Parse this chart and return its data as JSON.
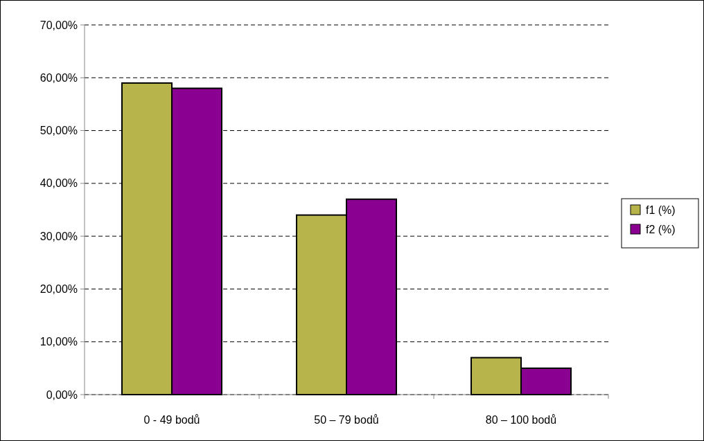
{
  "chart_data": {
    "type": "bar",
    "categories": [
      "0 - 49 bodů",
      "50 – 79 bodů",
      "80 – 100 bodů"
    ],
    "series": [
      {
        "name": "f1 (%)",
        "color": "#b8b44c",
        "values": [
          59,
          34,
          7
        ]
      },
      {
        "name": "f2 (%)",
        "color": "#8a0090",
        "values": [
          58,
          37,
          5
        ]
      }
    ],
    "ylim": [
      0,
      70
    ],
    "yticks": [
      {
        "value": 0,
        "label": "0,00%"
      },
      {
        "value": 10,
        "label": "10,00%"
      },
      {
        "value": 20,
        "label": "20,00%"
      },
      {
        "value": 30,
        "label": "30,00%"
      },
      {
        "value": 40,
        "label": "40,00%"
      },
      {
        "value": 50,
        "label": "50,00%"
      },
      {
        "value": 60,
        "label": "60,00%"
      },
      {
        "value": 70,
        "label": "70,00%"
      }
    ],
    "grid": "y",
    "legend": "right"
  }
}
